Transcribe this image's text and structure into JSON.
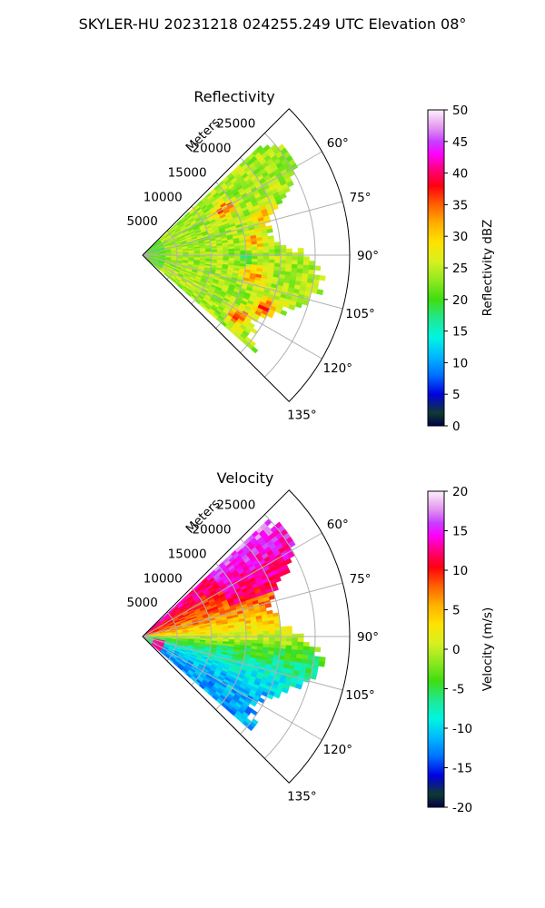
{
  "suptitle": "SKYLER-HU  20231218  024255.249 UTC Elevation 08°",
  "chart_data": [
    {
      "type": "heatmap",
      "title": "Reflectivity",
      "projection": "polar sector",
      "theta_range_deg": [
        45,
        135
      ],
      "r_range_m": [
        0,
        30000
      ],
      "r_axis_label": "Meters",
      "r_ticks": [
        "5000",
        "10000",
        "15000",
        "20000",
        "25000"
      ],
      "theta_ticks": [
        "60°",
        "75°",
        "90°",
        "105°",
        "120°",
        "135°"
      ],
      "grid": true,
      "colorbar": {
        "label": "Reflectivity dBZ",
        "vmin": 0,
        "vmax": 50,
        "ticks": [
          "0",
          "5",
          "10",
          "15",
          "20",
          "25",
          "30",
          "35",
          "40",
          "45",
          "50"
        ],
        "colormap_stops": [
          [
            0,
            "#00004a"
          ],
          [
            0.04,
            "#0f3a30"
          ],
          [
            0.1,
            "#0000e0"
          ],
          [
            0.16,
            "#0070ff"
          ],
          [
            0.22,
            "#00b8ff"
          ],
          [
            0.28,
            "#00f5e0"
          ],
          [
            0.34,
            "#20e890"
          ],
          [
            0.4,
            "#40dd10"
          ],
          [
            0.46,
            "#90e820"
          ],
          [
            0.52,
            "#d8f020"
          ],
          [
            0.58,
            "#ffe200"
          ],
          [
            0.64,
            "#ffb000"
          ],
          [
            0.7,
            "#ff6000"
          ],
          [
            0.76,
            "#ff0010"
          ],
          [
            0.82,
            "#ff0090"
          ],
          [
            0.86,
            "#ff00ff"
          ],
          [
            0.9,
            "#c640ff"
          ],
          [
            0.94,
            "#e090f0"
          ],
          [
            0.97,
            "#f0c0f4"
          ],
          [
            1.0,
            "#fdf0fd"
          ]
        ]
      },
      "features": [
        {
          "az": 60,
          "r_frac": 0.45,
          "value": 36
        },
        {
          "az": 72,
          "r_frac": 0.62,
          "value": 34
        },
        {
          "az": 82,
          "r_frac": 0.55,
          "value": 33
        },
        {
          "az": 90,
          "r_frac": 0.5,
          "value": 20
        },
        {
          "az": 100,
          "r_frac": 0.55,
          "value": 35
        },
        {
          "az": 113,
          "r_frac": 0.65,
          "value": 38
        },
        {
          "az": 122,
          "r_frac": 0.55,
          "value": 36
        }
      ]
    },
    {
      "type": "heatmap",
      "title": "Velocity",
      "projection": "polar sector",
      "theta_range_deg": [
        45,
        135
      ],
      "r_range_m": [
        0,
        30000
      ],
      "r_axis_label": "Meters",
      "r_ticks": [
        "5000",
        "10000",
        "15000",
        "20000",
        "25000"
      ],
      "theta_ticks": [
        "60°",
        "75°",
        "90°",
        "105°",
        "120°",
        "135°"
      ],
      "grid": true,
      "colorbar": {
        "label": "Velocity (m/s)",
        "vmin": -20,
        "vmax": 20,
        "ticks": [
          "-20",
          "-15",
          "-10",
          "-5",
          "0",
          "5",
          "10",
          "15",
          "20"
        ],
        "colormap_stops": [
          [
            0,
            "#00004a"
          ],
          [
            0.04,
            "#0f3a30"
          ],
          [
            0.1,
            "#0000e0"
          ],
          [
            0.16,
            "#0070ff"
          ],
          [
            0.22,
            "#00b8ff"
          ],
          [
            0.28,
            "#00f5e0"
          ],
          [
            0.34,
            "#20e890"
          ],
          [
            0.4,
            "#40dd10"
          ],
          [
            0.46,
            "#90e820"
          ],
          [
            0.52,
            "#d8f020"
          ],
          [
            0.58,
            "#ffe200"
          ],
          [
            0.64,
            "#ffb000"
          ],
          [
            0.7,
            "#ff6000"
          ],
          [
            0.76,
            "#ff0010"
          ],
          [
            0.82,
            "#ff0090"
          ],
          [
            0.86,
            "#ff00ff"
          ],
          [
            0.9,
            "#c640ff"
          ],
          [
            0.94,
            "#e090f0"
          ],
          [
            0.97,
            "#f0c0f4"
          ],
          [
            1.0,
            "#fdf0fd"
          ]
        ]
      },
      "velocity_profile_deg_ms": [
        [
          45,
          14
        ],
        [
          60,
          10
        ],
        [
          75,
          7
        ],
        [
          85,
          3
        ],
        [
          90,
          0
        ],
        [
          96,
          -4
        ],
        [
          105,
          -8
        ],
        [
          115,
          -11
        ],
        [
          122,
          -12
        ],
        [
          135,
          -12
        ]
      ]
    }
  ]
}
